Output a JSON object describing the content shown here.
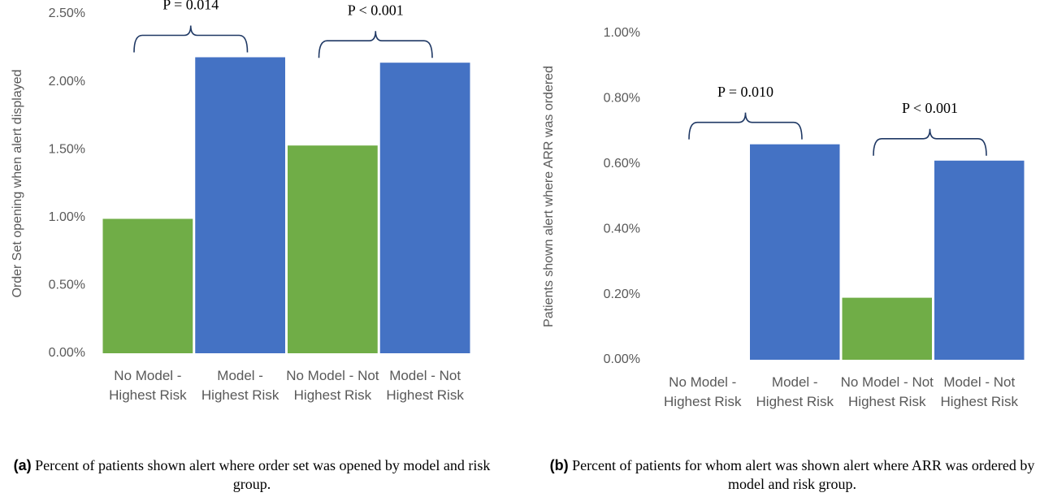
{
  "chart_data": [
    {
      "type": "bar",
      "ylabel": "Order Set opening when alert displayed",
      "categories": [
        "No Model - Highest Risk",
        "Model - Highest Risk",
        "No Model - Not Highest Risk",
        "Model - Not Highest Risk"
      ],
      "values": [
        0.99,
        2.18,
        1.53,
        2.14
      ],
      "colors": [
        "#70ad47",
        "#4472c4",
        "#70ad47",
        "#4472c4"
      ],
      "ylim": [
        0,
        2.5
      ],
      "yticks": [
        {
          "value": 0,
          "label": "0.00%"
        },
        {
          "value": 0.5,
          "label": "0.50%"
        },
        {
          "value": 1,
          "label": "1.00%"
        },
        {
          "value": 1.5,
          "label": "1.50%"
        },
        {
          "value": 2,
          "label": "2.00%"
        },
        {
          "value": 2.5,
          "label": "2.50%"
        }
      ],
      "annotations": [
        "P = 0.014",
        "P < 0.001"
      ],
      "caption_label": "(a)",
      "caption": "Percent of patients shown alert where order set was opened by model and risk group."
    },
    {
      "type": "bar",
      "ylabel": "Patients shown alert where ARR was ordered",
      "categories": [
        "No Model - Highest Risk",
        "Model - Highest Risk",
        "No Model - Not Highest Risk",
        "Model - Not Highest Risk"
      ],
      "values": [
        0,
        0.66,
        0.19,
        0.61
      ],
      "colors": [
        "#70ad47",
        "#4472c4",
        "#70ad47",
        "#4472c4"
      ],
      "ylim": [
        0,
        1
      ],
      "yticks": [
        {
          "value": 0,
          "label": "0.00%"
        },
        {
          "value": 0.2,
          "label": "0.20%"
        },
        {
          "value": 0.4,
          "label": "0.40%"
        },
        {
          "value": 0.6,
          "label": "0.60%"
        },
        {
          "value": 0.8,
          "label": "0.80%"
        },
        {
          "value": 1,
          "label": "1.00%"
        }
      ],
      "annotations": [
        "P = 0.010",
        "P < 0.001"
      ],
      "caption_label": "(b)",
      "caption": "Percent of patients for whom alert was shown alert where ARR was ordered by model and risk group."
    }
  ]
}
